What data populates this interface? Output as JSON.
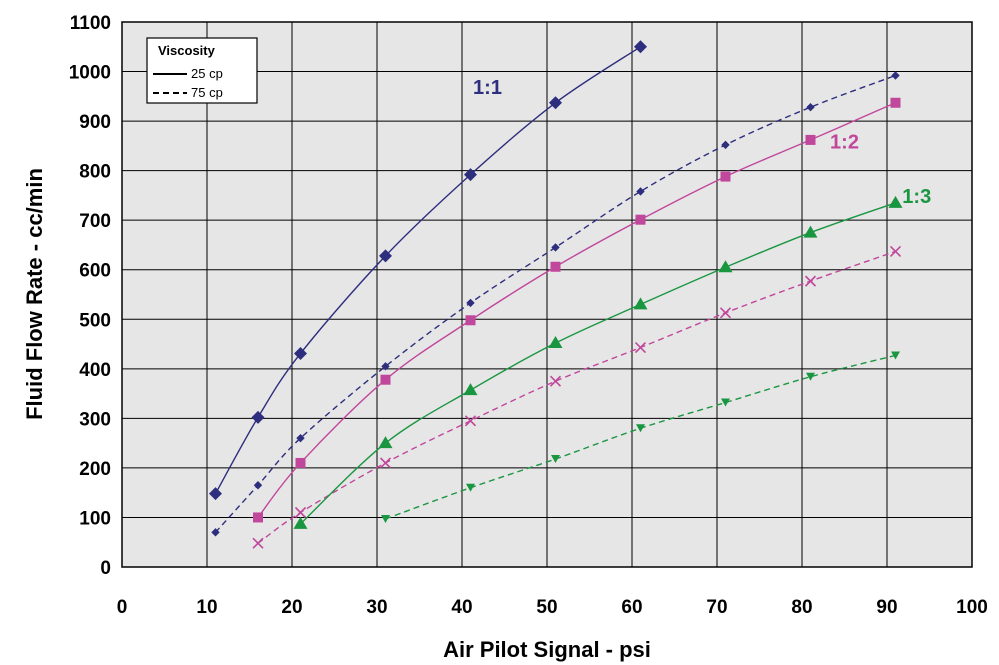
{
  "chart_data": {
    "type": "line",
    "xlabel": "Air Pilot Signal - psi",
    "ylabel": "Fluid Flow Rate - cc/min",
    "xlim": [
      0,
      100
    ],
    "ylim": [
      0,
      1100
    ],
    "x_ticks": [
      "0",
      "10",
      "20",
      "30",
      "40",
      "50",
      "60",
      "70",
      "80",
      "90",
      "100"
    ],
    "y_ticks": [
      "0",
      "100",
      "200",
      "300",
      "400",
      "500",
      "600",
      "700",
      "800",
      "900",
      "1000",
      "1100"
    ],
    "grid": true,
    "background": "#e6e6e6",
    "legend": {
      "title": "Viscosity",
      "placement": "top-left",
      "entries": [
        {
          "label": "25 cp",
          "style": "solid"
        },
        {
          "label": "75 cp",
          "style": "dashed"
        }
      ]
    },
    "ratio_labels": [
      {
        "text": "1:1",
        "color": "#2e2e7f",
        "x": 43,
        "y": 955
      },
      {
        "text": "1:2",
        "color": "#c0479b",
        "x": 85,
        "y": 845
      },
      {
        "text": "1:3",
        "color": "#1a9641",
        "x": 93.5,
        "y": 735
      }
    ],
    "series": [
      {
        "ratio": "1:1",
        "viscosity": "25 cp",
        "style": "solid",
        "marker": "diamond",
        "color": "#2e2e7f",
        "x": [
          11,
          16,
          21,
          31,
          41,
          51,
          61
        ],
        "y": [
          148,
          302,
          431,
          628,
          792,
          937,
          1050
        ]
      },
      {
        "ratio": "1:1",
        "viscosity": "75 cp",
        "style": "dashed",
        "marker": "small-diamond",
        "color": "#2e2e7f",
        "x": [
          11,
          16,
          21,
          31,
          41,
          51,
          61,
          71,
          81,
          91
        ],
        "y": [
          70,
          165,
          260,
          405,
          533,
          645,
          758,
          852,
          928,
          992
        ]
      },
      {
        "ratio": "1:2",
        "viscosity": "25 cp",
        "style": "solid",
        "marker": "square",
        "color": "#c0479b",
        "x": [
          16,
          21,
          31,
          41,
          51,
          61,
          71,
          81,
          91
        ],
        "y": [
          100,
          210,
          378,
          498,
          606,
          701,
          788,
          862,
          937
        ]
      },
      {
        "ratio": "1:2",
        "viscosity": "75 cp",
        "style": "dashed",
        "marker": "x",
        "color": "#c0479b",
        "x": [
          16,
          21,
          31,
          41,
          51,
          61,
          71,
          81,
          91
        ],
        "y": [
          48,
          110,
          210,
          295,
          375,
          443,
          513,
          577,
          637
        ]
      },
      {
        "ratio": "1:3",
        "viscosity": "25 cp",
        "style": "solid",
        "marker": "triangle",
        "color": "#1a9641",
        "x": [
          21,
          31,
          41,
          51,
          61,
          71,
          81,
          91
        ],
        "y": [
          87,
          250,
          357,
          452,
          530,
          605,
          675,
          735
        ]
      },
      {
        "ratio": "1:3",
        "viscosity": "75 cp",
        "style": "dashed",
        "marker": "down-triangle",
        "color": "#1a9641",
        "x": [
          31,
          41,
          51,
          61,
          71,
          81,
          91
        ],
        "y": [
          97,
          160,
          218,
          280,
          332,
          384,
          427
        ]
      }
    ]
  }
}
